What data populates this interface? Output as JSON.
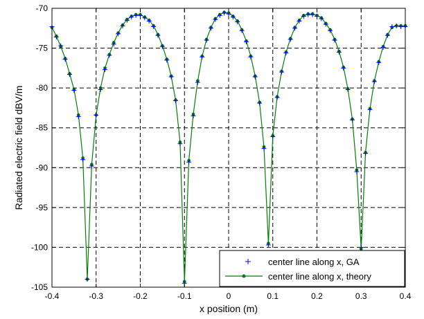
{
  "chart_data": {
    "type": "line",
    "title": "",
    "xlabel": "x position (m)",
    "ylabel": "Radiated electric field dBV/m",
    "xlim": [
      -0.4,
      0.4
    ],
    "ylim": [
      -105,
      -70
    ],
    "xticks": [
      "-0.4",
      "-0.3",
      "-0.2",
      "-0.1",
      "0",
      "0.1",
      "0.2",
      "0.3",
      "0.4"
    ],
    "yticks": [
      "-70",
      "-75",
      "-80",
      "-85",
      "-90",
      "-95",
      "-100",
      "-105"
    ],
    "grid": true,
    "legend_position": "bottom-right",
    "series": [
      {
        "name": "center line along x, GA",
        "color": "#0000ff",
        "marker": "plus",
        "x": [
          -0.4,
          -0.39,
          -0.38,
          -0.37,
          -0.36,
          -0.35,
          -0.34,
          -0.33,
          -0.32,
          -0.31,
          -0.3,
          -0.29,
          -0.28,
          -0.27,
          -0.26,
          -0.25,
          -0.24,
          -0.23,
          -0.22,
          -0.21,
          -0.2,
          -0.19,
          -0.18,
          -0.17,
          -0.16,
          -0.15,
          -0.14,
          -0.13,
          -0.12,
          -0.11,
          -0.1,
          -0.09,
          -0.08,
          -0.07,
          -0.06,
          -0.05,
          -0.04,
          -0.03,
          -0.02,
          -0.01,
          0.0,
          0.01,
          0.02,
          0.03,
          0.04,
          0.05,
          0.06,
          0.07,
          0.08,
          0.09,
          0.1,
          0.11,
          0.12,
          0.13,
          0.14,
          0.15,
          0.16,
          0.17,
          0.18,
          0.19,
          0.2,
          0.21,
          0.22,
          0.23,
          0.24,
          0.25,
          0.26,
          0.27,
          0.28,
          0.29,
          0.3,
          0.31,
          0.32,
          0.33,
          0.34,
          0.35,
          0.36,
          0.37,
          0.38,
          0.39,
          0.4
        ],
        "values": [
          -72.3,
          -73.6,
          -74.7,
          -76.4,
          -78.3,
          -80.3,
          -83.6,
          -89.0,
          -104.0,
          -89.8,
          -83.4,
          -80.2,
          -77.7,
          -75.9,
          -74.5,
          -73.2,
          -72.2,
          -71.5,
          -71.1,
          -70.9,
          -70.9,
          -71.2,
          -71.6,
          -72.3,
          -73.4,
          -74.8,
          -76.5,
          -78.6,
          -81.6,
          -87.0,
          -104.5,
          -89.3,
          -83.5,
          -79.3,
          -76.1,
          -74.0,
          -72.5,
          -71.4,
          -70.9,
          -70.6,
          -70.7,
          -71.1,
          -71.7,
          -72.8,
          -74.2,
          -76.1,
          -78.6,
          -81.9,
          -87.6,
          -99.7,
          -86.1,
          -81.2,
          -78.0,
          -75.6,
          -73.9,
          -72.5,
          -71.6,
          -71.0,
          -70.8,
          -70.8,
          -71.0,
          -71.3,
          -72.0,
          -72.8,
          -74.0,
          -75.5,
          -77.5,
          -80.2,
          -84.0,
          -90.5,
          -100.0,
          -88.2,
          -82.7,
          -79.2,
          -76.8,
          -74.9,
          -73.4,
          -72.3,
          -72.2,
          -72.3,
          -72.3
        ]
      },
      {
        "name": "center line along x, theory",
        "color": "#008000",
        "marker": "dot",
        "x": [
          -0.4,
          -0.39,
          -0.38,
          -0.37,
          -0.36,
          -0.35,
          -0.34,
          -0.33,
          -0.32,
          -0.31,
          -0.3,
          -0.29,
          -0.28,
          -0.27,
          -0.26,
          -0.25,
          -0.24,
          -0.23,
          -0.22,
          -0.21,
          -0.2,
          -0.19,
          -0.18,
          -0.17,
          -0.16,
          -0.15,
          -0.14,
          -0.13,
          -0.12,
          -0.11,
          -0.1,
          -0.09,
          -0.08,
          -0.07,
          -0.06,
          -0.05,
          -0.04,
          -0.03,
          -0.02,
          -0.01,
          0.0,
          0.01,
          0.02,
          0.03,
          0.04,
          0.05,
          0.06,
          0.07,
          0.08,
          0.09,
          0.1,
          0.11,
          0.12,
          0.13,
          0.14,
          0.15,
          0.16,
          0.17,
          0.18,
          0.19,
          0.2,
          0.21,
          0.22,
          0.23,
          0.24,
          0.25,
          0.26,
          0.27,
          0.28,
          0.29,
          0.3,
          0.31,
          0.32,
          0.33,
          0.34,
          0.35,
          0.36,
          0.37,
          0.38,
          0.39,
          0.4
        ],
        "values": [
          -72.4,
          -73.5,
          -74.8,
          -76.3,
          -78.2,
          -80.2,
          -83.4,
          -88.8,
          -104.0,
          -89.6,
          -83.4,
          -80.0,
          -77.5,
          -75.8,
          -74.3,
          -73.1,
          -72.1,
          -71.4,
          -71.0,
          -70.8,
          -70.8,
          -71.1,
          -71.5,
          -72.2,
          -73.3,
          -74.7,
          -76.4,
          -78.5,
          -81.5,
          -86.8,
          -104.3,
          -89.1,
          -83.3,
          -79.1,
          -76.0,
          -73.9,
          -72.4,
          -71.3,
          -70.8,
          -70.5,
          -70.6,
          -71.0,
          -71.6,
          -72.7,
          -74.1,
          -76.0,
          -78.5,
          -81.8,
          -87.4,
          -99.5,
          -86.0,
          -81.1,
          -77.9,
          -75.5,
          -73.8,
          -72.4,
          -71.5,
          -70.9,
          -70.7,
          -70.7,
          -70.9,
          -71.2,
          -71.9,
          -72.7,
          -73.9,
          -75.4,
          -77.4,
          -80.1,
          -83.9,
          -90.3,
          -100.2,
          -88.1,
          -82.6,
          -79.1,
          -76.7,
          -74.8,
          -73.3,
          -72.4,
          -72.2,
          -72.2,
          -72.2
        ]
      }
    ]
  }
}
